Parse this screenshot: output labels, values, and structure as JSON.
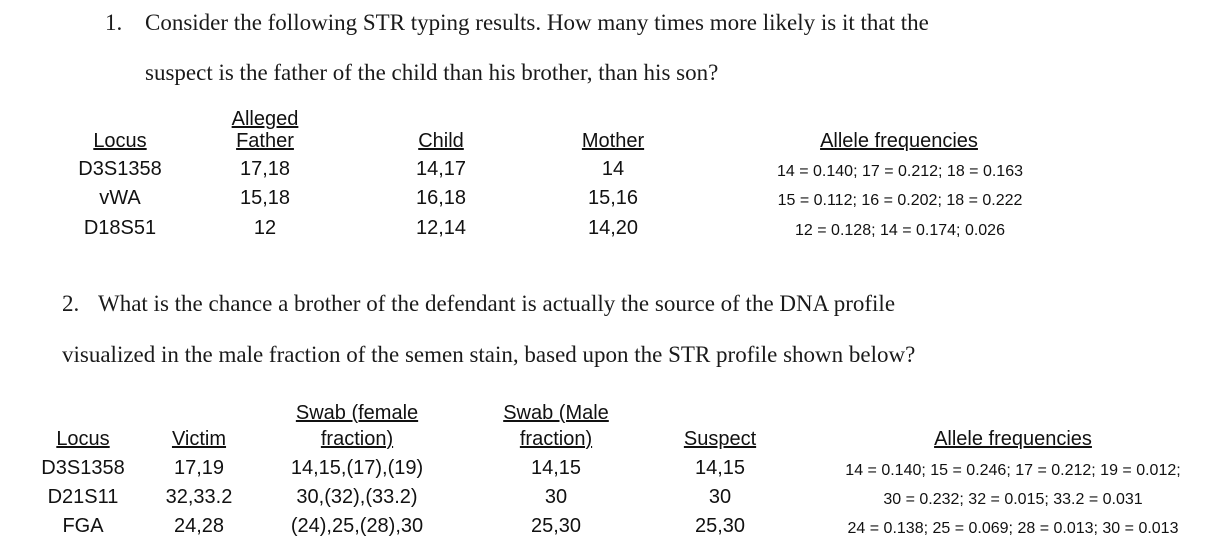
{
  "q1": {
    "number": "1.",
    "line1": "Consider the following STR typing results.  How many times more likely is it that the",
    "line2": "suspect is the father of the child than his brother, than his son?",
    "headers": {
      "locus": "Locus",
      "father_top": "Alleged",
      "father_bottom": "Father",
      "child": "Child",
      "mother": "Mother",
      "freq": "Allele frequencies"
    },
    "rows": [
      {
        "locus": "D3S1358",
        "father": "17,18",
        "child": "14,17",
        "mother": "14",
        "freq": "14 = 0.140; 17 = 0.212; 18 = 0.163"
      },
      {
        "locus": "vWA",
        "father": "15,18",
        "child": "16,18",
        "mother": "15,16",
        "freq": "15 = 0.112; 16 = 0.202; 18 = 0.222"
      },
      {
        "locus": "D18S51",
        "father": "12",
        "child": "12,14",
        "mother": "14,20",
        "freq": "12 = 0.128; 14 = 0.174; 0.026"
      }
    ]
  },
  "q2": {
    "number": "2.",
    "line1": "What is the chance a brother of the defendant is actually the source of the DNA profile",
    "line2": "visualized in the male fraction of the semen stain, based upon the STR profile shown below?",
    "headers": {
      "locus": "Locus",
      "victim": "Victim",
      "female_top": "Swab (female",
      "female_bottom": "fraction)",
      "male_top": "Swab (Male",
      "male_bottom": "fraction)",
      "suspect": "Suspect",
      "freq": "Allele frequencies"
    },
    "rows": [
      {
        "locus": "D3S1358",
        "victim": "17,19",
        "female": "14,15,(17),(19)",
        "male": "14,15",
        "suspect": "14,15",
        "freq": "14 = 0.140; 15 = 0.246; 17 = 0.212; 19 = 0.012;"
      },
      {
        "locus": "D21S11",
        "victim": "32,33.2",
        "female": "30,(32),(33.2)",
        "male": "30",
        "suspect": "30",
        "freq": "30 = 0.232; 32 = 0.015; 33.2 = 0.031"
      },
      {
        "locus": "FGA",
        "victim": "24,28",
        "female": "(24),25,(28),30",
        "male": "25,30",
        "suspect": "25,30",
        "freq": "24 = 0.138; 25 = 0.069; 28 = 0.013; 30 = 0.013"
      }
    ]
  }
}
